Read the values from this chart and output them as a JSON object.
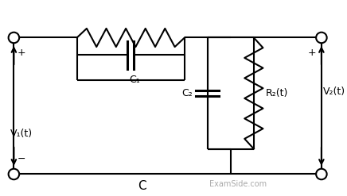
{
  "bg_color": "#ffffff",
  "line_color": "#000000",
  "gray_color": "#aaaaaa",
  "labels": {
    "V1": "V₁(t)",
    "V2": "V₂(t)",
    "C1": "C₁",
    "C2": "C₂",
    "R2": "R₂(t)",
    "C": "C"
  },
  "examside": "ExamSide.com"
}
